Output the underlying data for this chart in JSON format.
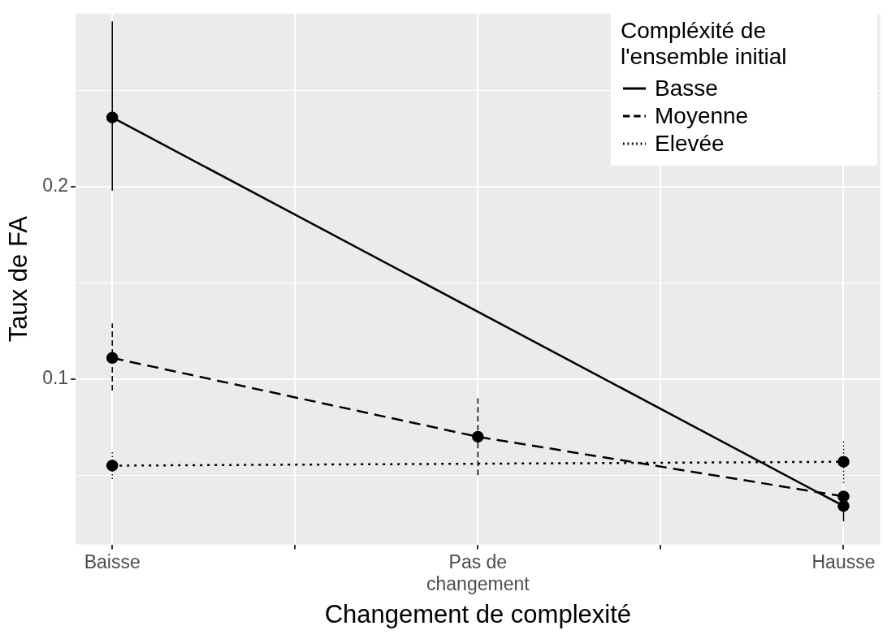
{
  "chart_data": {
    "type": "line",
    "xlabel": "Changement de complexité",
    "ylabel": "Taux de FA",
    "legend_title": "Compléxité de l'ensemble initial",
    "categories": [
      "Baisse",
      "Pas de changement",
      "Hausse"
    ],
    "ylim": [
      0.014,
      0.29
    ],
    "yticks": [
      {
        "value": 0.05,
        "label": null
      },
      0.1,
      {
        "value": 0.15,
        "label": null
      },
      0.2,
      {
        "value": 0.25,
        "label": null
      }
    ],
    "grid": true,
    "legend": "top right",
    "marker": "circle",
    "series": [
      {
        "name": "Basse",
        "color": "#000000",
        "line_style": "solid",
        "values": [
          0.236,
          null,
          0.034
        ],
        "errors": [
          [
            0.198,
            0.286
          ],
          null,
          [
            0.026,
            0.034
          ]
        ]
      },
      {
        "name": "Moyenne",
        "color": "#000000",
        "line_style": "dashed",
        "values": [
          0.111,
          0.07,
          0.039
        ],
        "errors": [
          [
            0.094,
            0.129
          ],
          [
            0.05,
            0.09
          ],
          null
        ]
      },
      {
        "name": "Elevée",
        "color": "#000000",
        "line_style": "dotted",
        "values": [
          0.055,
          null,
          0.057
        ],
        "errors": [
          [
            0.048,
            0.063
          ],
          null,
          [
            0.046,
            0.068
          ]
        ]
      }
    ]
  }
}
